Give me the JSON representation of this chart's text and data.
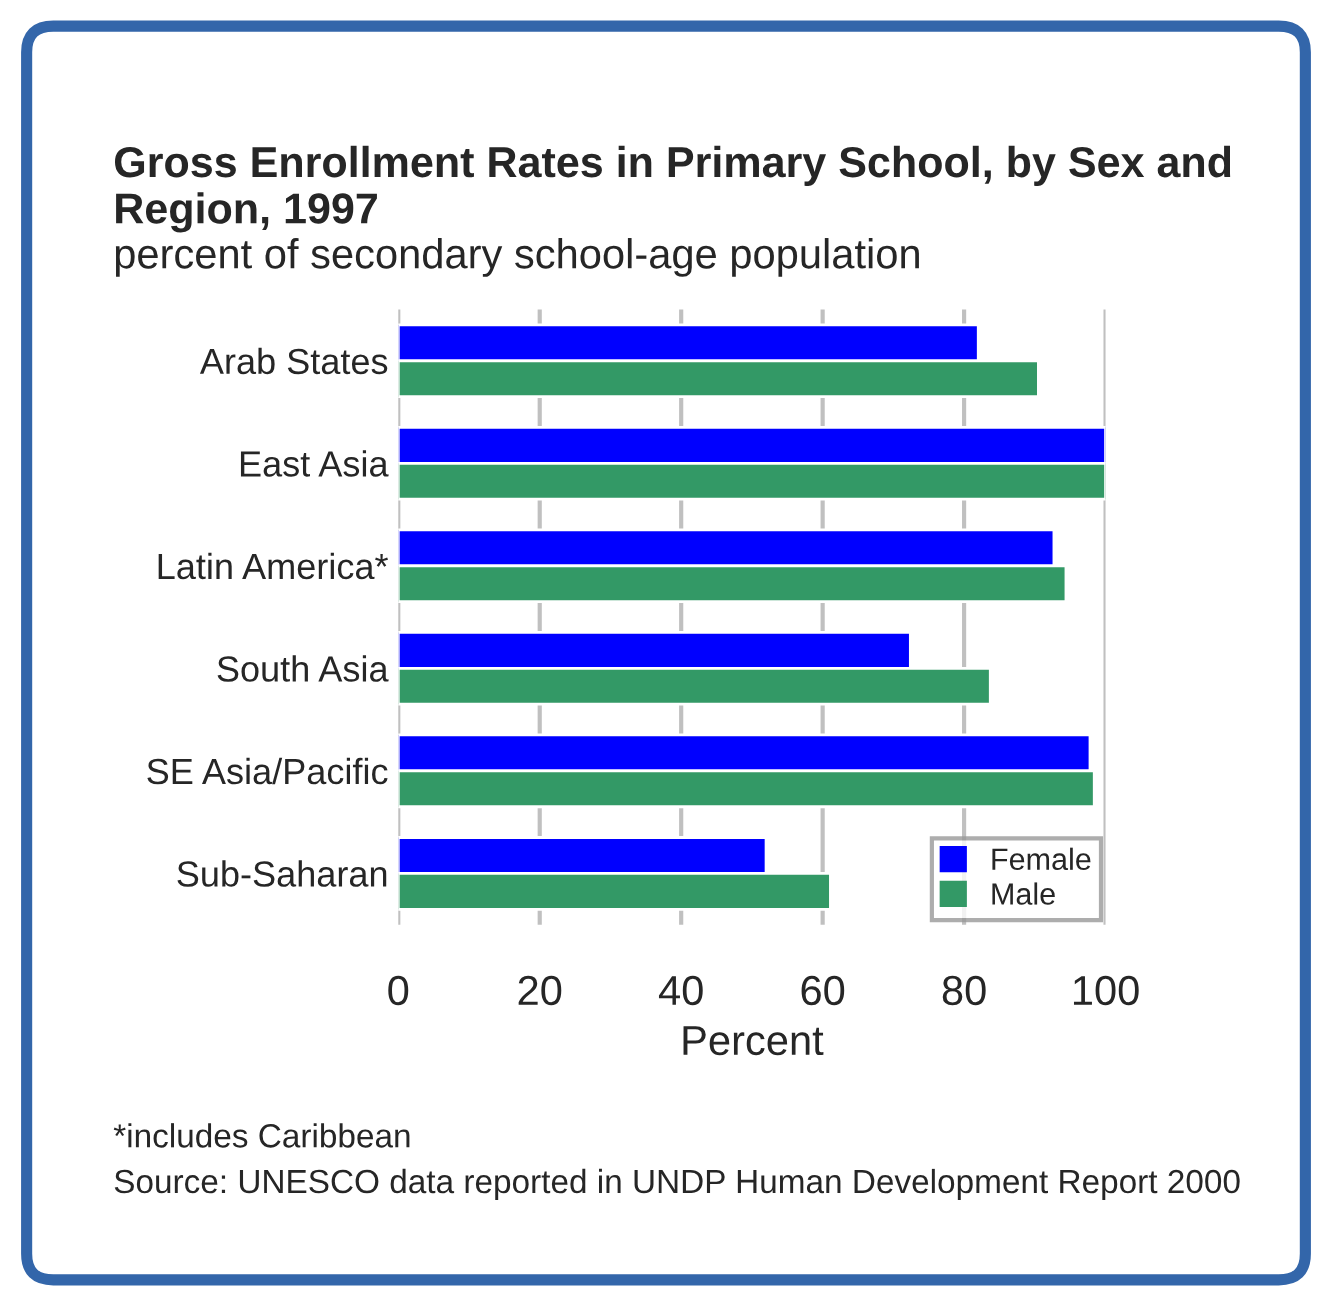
{
  "chart_data": {
    "type": "bar",
    "orientation": "horizontal",
    "title": "Gross Enrollment Rates in Primary School, by Sex and Region, 1997",
    "subtitle": "percent of secondary school-age population",
    "xlabel": "Percent",
    "categories": [
      "Arab States",
      "East Asia",
      "Latin America*",
      "South Asia",
      "SE Asia/Pacific",
      "Sub-Saharan"
    ],
    "series": [
      {
        "name": "Female",
        "color": "#0000ff",
        "values": [
          82,
          100,
          92.7,
          72.4,
          97.8,
          52
        ]
      },
      {
        "name": "Male",
        "color": "#339966",
        "values": [
          90.5,
          100,
          94.4,
          83.7,
          98.4,
          61.1
        ]
      }
    ],
    "xlim": [
      0,
      100
    ],
    "xticks": [
      0,
      20,
      40,
      60,
      80,
      100
    ],
    "grid": "x",
    "legend": "bottom right",
    "annotations": [
      "*includes Caribbean",
      "Source: UNESCO data reported in UNDP Human Development Report 2000"
    ]
  }
}
